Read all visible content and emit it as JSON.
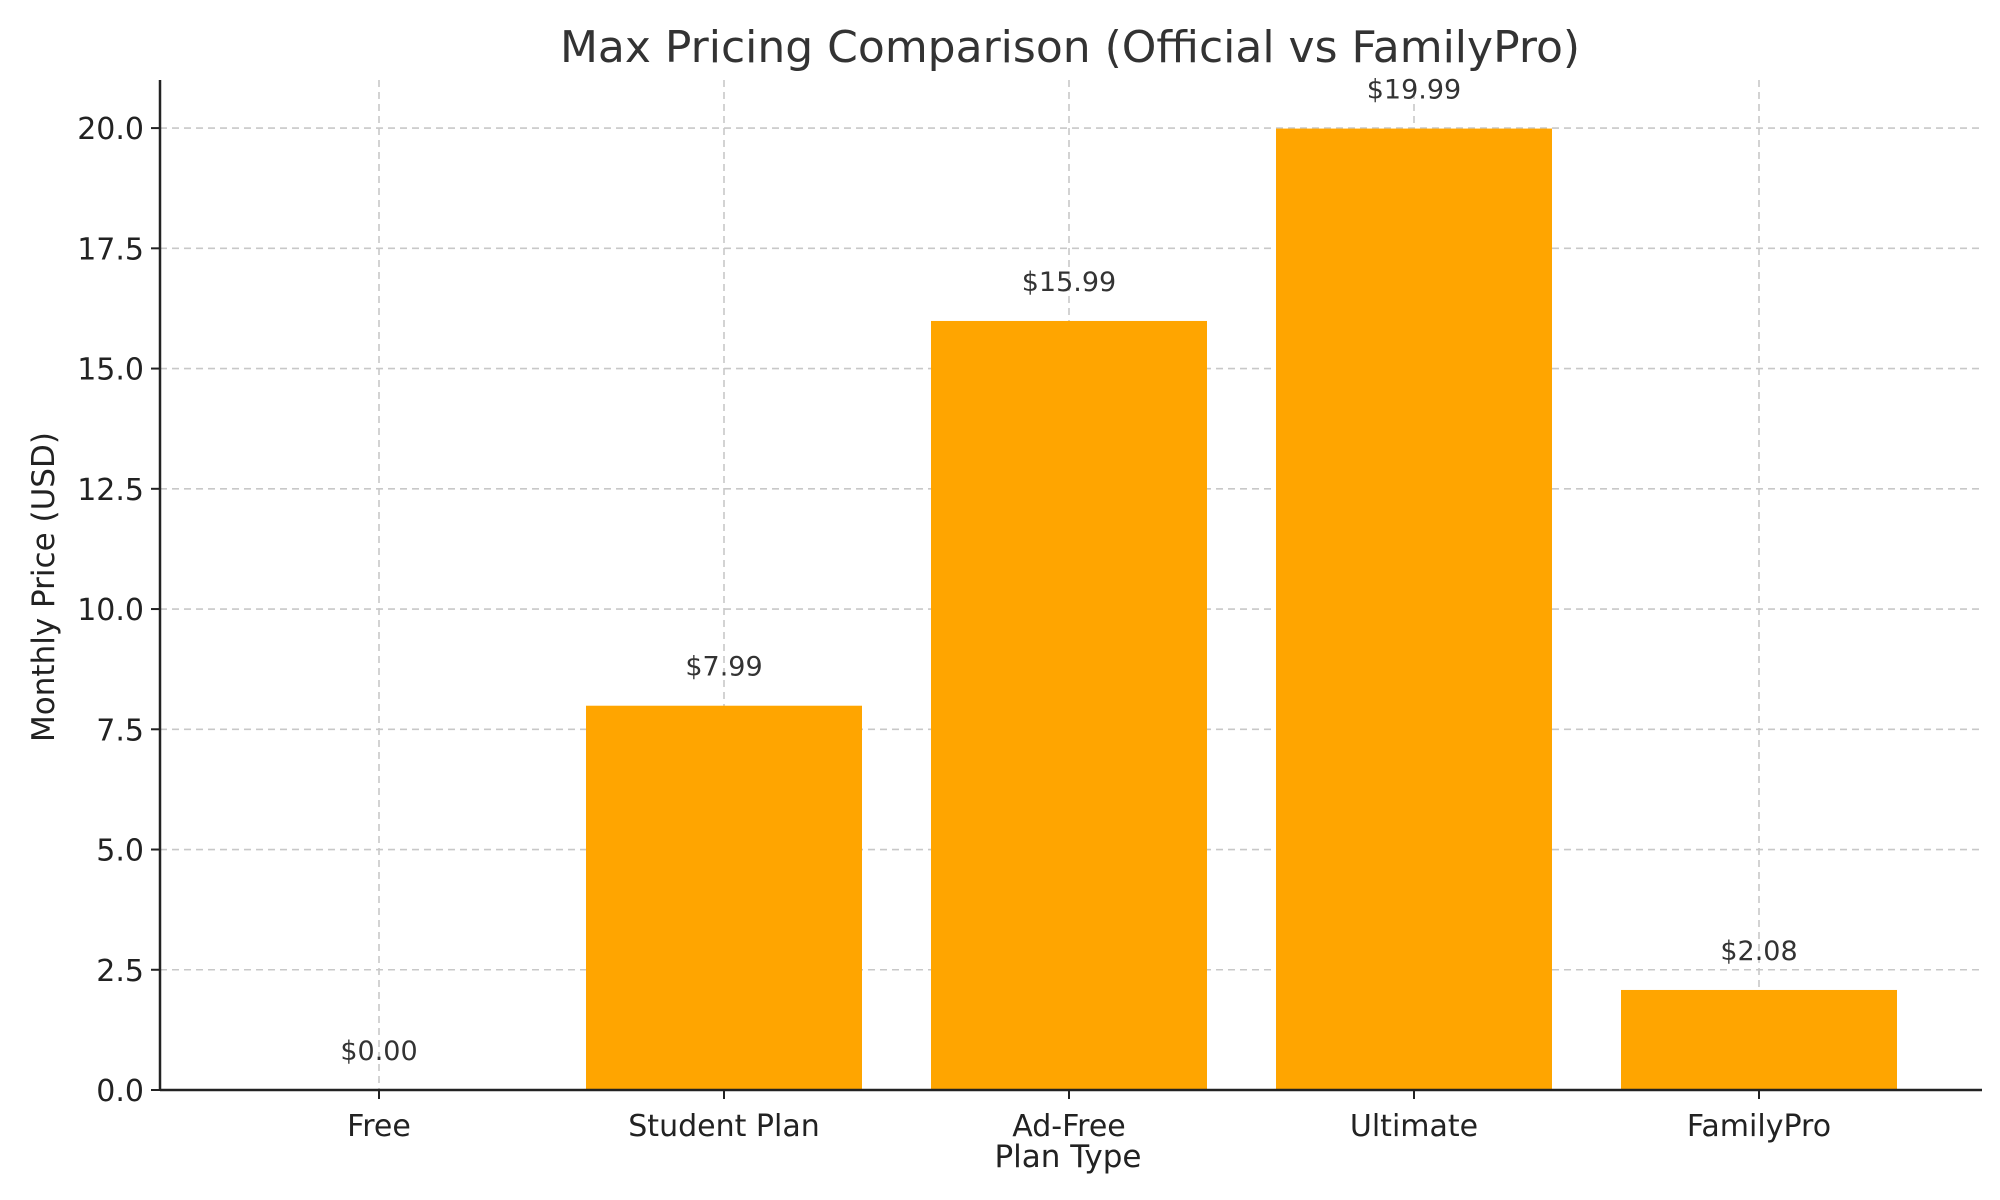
{
  "chart_data": {
    "type": "bar",
    "title": "Max Pricing Comparison (Official vs FamilyPro)",
    "xlabel": "Plan Type",
    "ylabel": "Monthly Price (USD)",
    "categories": [
      "Free",
      "Student Plan",
      "Ad-Free",
      "Ultimate",
      "FamilyPro"
    ],
    "values": [
      0.0,
      7.99,
      15.99,
      19.99,
      2.08
    ],
    "value_labels": [
      "$0.00",
      "$7.99",
      "$15.99",
      "$19.99",
      "$2.08"
    ],
    "ylim": [
      0,
      21
    ],
    "yticks": [
      0,
      2.5,
      5,
      7.5,
      10,
      12.5,
      15,
      17.5,
      20
    ],
    "ytick_labels": [
      "0.0",
      "2.5",
      "5.0",
      "7.5",
      "10.0",
      "12.5",
      "15.0",
      "17.5",
      "20.0"
    ],
    "bar_color": "#FFA500",
    "grid": true,
    "legend": false
  }
}
